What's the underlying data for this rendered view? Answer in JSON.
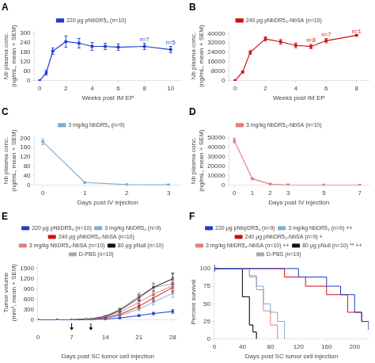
{
  "chart_data": [
    {
      "type": "line",
      "title": "A",
      "xlabel": "Weeks post IM EP",
      "ylabel": "Nb plasma conc.\n(ng/mL, mean + SEM)",
      "x": [
        0,
        0.5,
        1,
        2,
        3,
        4,
        5,
        6,
        8,
        10
      ],
      "series": [
        {
          "name": "220 μg pNbDR5₄ (n=10)",
          "color": "#1F3DCC",
          "values": [
            0,
            50,
            185,
            245,
            235,
            215,
            215,
            210,
            215,
            195
          ],
          "yerr": [
            0,
            15,
            20,
            35,
            30,
            25,
            20,
            20,
            20,
            20
          ]
        }
      ],
      "marker": "square",
      "xlim": [
        -0.4,
        10.8
      ],
      "xticks": [
        0,
        2,
        4,
        6,
        8,
        10
      ],
      "ylim": [
        0,
        310
      ],
      "yticks": [
        0,
        60,
        120,
        180,
        240,
        300
      ],
      "grid": false,
      "legend": "top",
      "annotations": [
        {
          "x": 8,
          "y": 238,
          "text": "n=7"
        },
        {
          "x": 10,
          "y": 218,
          "text": "n=5"
        }
      ]
    },
    {
      "type": "line",
      "title": "B",
      "xlabel": "Weeks post IM EP",
      "ylabel": "Nb plasma conc.\n(ng/mL, mean + SEM)",
      "x": [
        0,
        0.5,
        1,
        2,
        3,
        4,
        5,
        6,
        8
      ],
      "series": [
        {
          "name": "240 μg pNbDR5₄-NbSA (n=10)",
          "color": "#CC1111",
          "values": [
            0,
            7500,
            24000,
            35500,
            33000,
            30000,
            29000,
            34000,
            38500
          ],
          "yerr": [
            0,
            800,
            1500,
            1800,
            2000,
            2000,
            1800,
            1800,
            500
          ]
        }
      ],
      "marker": "square",
      "xlim": [
        -0.4,
        8.8
      ],
      "xticks": [
        0,
        2,
        4,
        6,
        8
      ],
      "ylim": [
        0,
        42000
      ],
      "yticks": [
        0,
        8000,
        16000,
        24000,
        32000,
        40000
      ],
      "grid": false,
      "legend": "top",
      "annotations": [
        {
          "x": 5,
          "y": 31500,
          "text": "n=8"
        },
        {
          "x": 6,
          "y": 36500,
          "text": "n=7"
        },
        {
          "x": 8,
          "y": 39500,
          "text": "n=1"
        }
      ]
    },
    {
      "type": "line",
      "title": "C",
      "xlabel": "Days post IV injection",
      "ylabel": "Nb plasma conc.\n(ng/mL, mean + SEM)",
      "x": [
        0,
        1,
        2,
        3
      ],
      "series": [
        {
          "name": "3 mg/kg NbDR5₄ (n=9)",
          "color": "#7BAFD4",
          "values": [
            185,
            12,
            3,
            2
          ],
          "yerr": [
            12,
            3,
            1,
            0.5
          ]
        }
      ],
      "marker": "square",
      "xlim": [
        -0.2,
        3.3
      ],
      "xticks": [
        0,
        1,
        2,
        3
      ],
      "ylim": [
        0,
        210
      ],
      "yticks": [
        0,
        40,
        80,
        120,
        160,
        200
      ],
      "grid": false,
      "legend": "top"
    },
    {
      "type": "line",
      "title": "D",
      "xlabel": "Days post IV injection",
      "ylabel": "Nb plasma conc.\n(ng/mL, mean + SEM)",
      "x": [
        0,
        1,
        2,
        3,
        5,
        7
      ],
      "series": [
        {
          "name": "3 mg/kg NbDR5₄-NbSA (n=10)",
          "color": "#E08080",
          "values": [
            47000,
            7000,
            1200,
            350,
            150,
            80
          ],
          "yerr": [
            2500,
            800,
            200,
            80,
            30,
            20
          ]
        }
      ],
      "marker": "square",
      "xlim": [
        -0.3,
        7.5
      ],
      "xticks": [
        0,
        1,
        2,
        3,
        5,
        7
      ],
      "ylim": [
        0,
        52000
      ],
      "yticks": [
        0,
        10000,
        20000,
        30000,
        40000,
        50000
      ],
      "grid": false,
      "legend": "top"
    },
    {
      "type": "line",
      "title": "E",
      "xlabel": "Days post SC tumor cell injection",
      "ylabel": "Tumor volume\n(mm³, mean + SEM)",
      "x": [
        0,
        4,
        7,
        10,
        11,
        14,
        17,
        21,
        24,
        28
      ],
      "series": [
        {
          "name": "220 μg pNbDR5₄ (n=10)",
          "color": "#1F3DCC",
          "values": [
            0,
            2,
            5,
            10,
            12,
            30,
            60,
            130,
            190,
            250
          ],
          "yerr": [
            0,
            1,
            1,
            2,
            3,
            5,
            12,
            25,
            35,
            50
          ]
        },
        {
          "name": "3 mg/kg NbDR5₄ (n=9)",
          "color": "#7BAFD4",
          "values": [
            0,
            2,
            5,
            12,
            15,
            50,
            130,
            320,
            520,
            780
          ],
          "yerr": [
            0,
            1,
            1,
            3,
            4,
            10,
            25,
            50,
            80,
            120
          ]
        },
        {
          "name": "240 μg pNbDR5₄-NbSA (n=10)",
          "color": "#CC1111",
          "values": [
            0,
            2,
            5,
            15,
            18,
            60,
            160,
            400,
            640,
            950
          ],
          "yerr": [
            0,
            1,
            1,
            3,
            4,
            12,
            30,
            60,
            90,
            130
          ]
        },
        {
          "name": "3 mg/kg NbDR5₄-NbSA (n=10)",
          "color": "#E08080",
          "values": [
            0,
            2,
            6,
            18,
            22,
            80,
            220,
            520,
            750,
            1000
          ],
          "yerr": [
            0,
            1,
            1,
            4,
            5,
            15,
            40,
            70,
            100,
            140
          ]
        },
        {
          "name": "80 μg pNull (n=10)",
          "color": "#111111",
          "values": [
            0,
            3,
            8,
            25,
            30,
            100,
            280,
            650,
            950,
            1200
          ],
          "yerr": [
            0,
            1,
            2,
            5,
            6,
            18,
            45,
            85,
            120,
            160
          ]
        },
        {
          "name": "D-PBS (n=10)",
          "color": "#AAAAAA",
          "values": [
            0,
            3,
            8,
            28,
            35,
            120,
            310,
            700,
            950,
            1050
          ],
          "yerr": [
            0,
            1,
            2,
            5,
            7,
            20,
            50,
            90,
            120,
            150
          ]
        }
      ],
      "marker": "square",
      "xlim": [
        0,
        29
      ],
      "xticks": [
        0,
        7,
        14,
        21,
        28
      ],
      "ylim": [
        0,
        1600
      ],
      "yticks": [
        0,
        300,
        600,
        900,
        1200,
        1500
      ],
      "arrow_days": [
        7,
        11
      ],
      "grid": false,
      "legend": "top"
    },
    {
      "type": "step",
      "title": "F",
      "xlabel": "Days post SC tumor cell injection",
      "ylabel": "Percent survival",
      "series": [
        {
          "name": "220 μg pNbpDR5₄ (n=9)",
          "color": "#1F3DCC",
          "x": [
            0,
            40,
            80,
            100,
            120,
            140,
            160,
            180,
            200,
            210,
            220
          ],
          "values": [
            100,
            100,
            100,
            100,
            88,
            88,
            75,
            63,
            38,
            25,
            13
          ]
        },
        {
          "name": "3 mg/kg NbDR5₄ (n=9) ++",
          "color": "#7BAFD4",
          "x": [
            0,
            40,
            50,
            60,
            70,
            80,
            90,
            100
          ],
          "values": [
            100,
            100,
            88,
            75,
            50,
            38,
            25,
            0
          ]
        },
        {
          "name": "240 μg pNbDR5₄-NbSA (n=9) +",
          "color": "#CC1111",
          "x": [
            0,
            40,
            60,
            80,
            100,
            130,
            160,
            190,
            210,
            220
          ],
          "values": [
            100,
            100,
            100,
            100,
            88,
            75,
            63,
            38,
            25,
            13
          ]
        },
        {
          "name": "3 mg/kg NbDR5₄-NbSA (n=10) ++",
          "color": "#E08080",
          "x": [
            0,
            40,
            50,
            60,
            70,
            80,
            90
          ],
          "values": [
            100,
            100,
            90,
            70,
            40,
            20,
            0
          ]
        },
        {
          "name": "80 μg pNull (n=10) ** ++",
          "color": "#111111",
          "x": [
            0,
            30,
            40,
            50,
            55,
            60
          ],
          "values": [
            100,
            100,
            60,
            20,
            10,
            0
          ]
        },
        {
          "name": "D-PBS (n=10)",
          "color": "#AAAAAA",
          "x": [
            0,
            30,
            40,
            50,
            55,
            60
          ],
          "values": [
            100,
            100,
            60,
            20,
            10,
            0
          ]
        }
      ],
      "marker": "cross",
      "xlim": [
        0,
        220
      ],
      "xticks": [
        0,
        40,
        80,
        120,
        160,
        200
      ],
      "ylim": [
        0,
        105
      ],
      "yticks": [
        0,
        25,
        50,
        75,
        100
      ],
      "grid": false,
      "legend": "top"
    }
  ]
}
